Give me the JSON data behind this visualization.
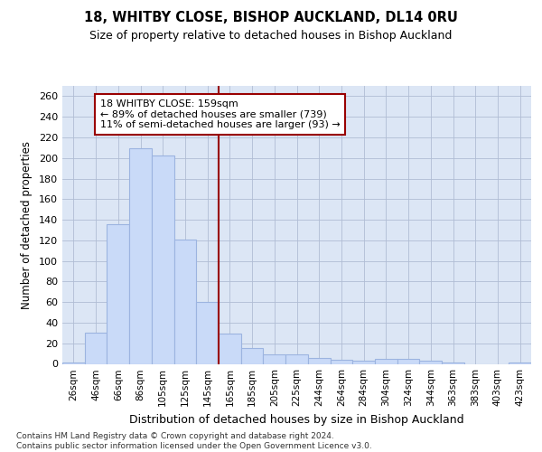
{
  "title_line1": "18, WHITBY CLOSE, BISHOP AUCKLAND, DL14 0RU",
  "title_line2": "Size of property relative to detached houses in Bishop Auckland",
  "xlabel": "Distribution of detached houses by size in Bishop Auckland",
  "ylabel": "Number of detached properties",
  "categories": [
    "26sqm",
    "46sqm",
    "66sqm",
    "86sqm",
    "105sqm",
    "125sqm",
    "145sqm",
    "165sqm",
    "185sqm",
    "205sqm",
    "225sqm",
    "244sqm",
    "264sqm",
    "284sqm",
    "304sqm",
    "324sqm",
    "344sqm",
    "363sqm",
    "383sqm",
    "403sqm",
    "423sqm"
  ],
  "values": [
    1,
    30,
    136,
    209,
    202,
    121,
    60,
    29,
    15,
    9,
    9,
    6,
    4,
    3,
    5,
    5,
    3,
    1,
    0,
    0,
    1
  ],
  "bar_color": "#c9daf8",
  "bar_edge_color": "#9cb4e0",
  "grid_color": "#b0bdd4",
  "vline_x_index": 7,
  "vline_color": "#990000",
  "annotation_text": "18 WHITBY CLOSE: 159sqm\n← 89% of detached houses are smaller (739)\n11% of semi-detached houses are larger (93) →",
  "annotation_box_color": "white",
  "annotation_box_edge_color": "#990000",
  "footnote": "Contains HM Land Registry data © Crown copyright and database right 2024.\nContains public sector information licensed under the Open Government Licence v3.0.",
  "ylim": [
    0,
    270
  ],
  "yticks": [
    0,
    20,
    40,
    60,
    80,
    100,
    120,
    140,
    160,
    180,
    200,
    220,
    240,
    260
  ],
  "background_color": "#dce6f5",
  "fig_background": "#ffffff"
}
